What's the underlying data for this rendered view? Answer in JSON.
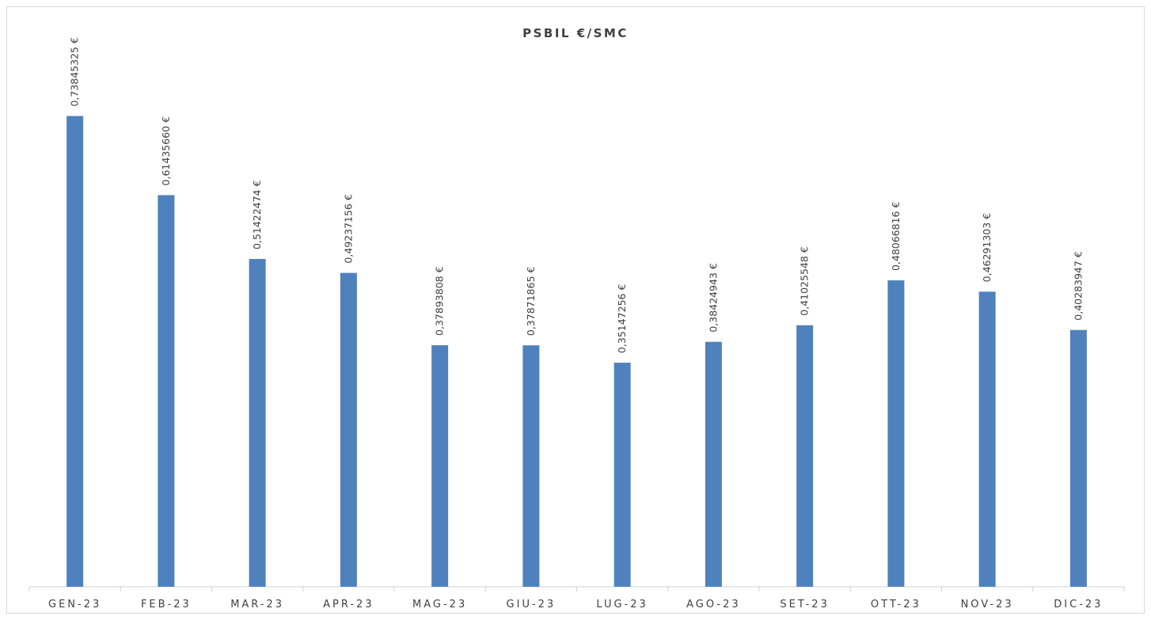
{
  "chart_data": {
    "type": "bar",
    "title": "PSBIL €/SMC",
    "xlabel": "",
    "ylabel": "",
    "categories": [
      "GEN-23",
      "FEB-23",
      "MAR-23",
      "APR-23",
      "MAG-23",
      "GIU-23",
      "LUG-23",
      "AGO-23",
      "SET-23",
      "OTT-23",
      "NOV-23",
      "DIC-23"
    ],
    "values": [
      0.73845325,
      0.6143566,
      0.51422474,
      0.49237156,
      0.37893808,
      0.37871865,
      0.35147256,
      0.38424943,
      0.41025548,
      0.48066816,
      0.46291303,
      0.40283947
    ],
    "value_labels": [
      "0,73845325 €",
      "0,61435660 €",
      "0,51422474 €",
      "0,49237156 €",
      "0,37893808 €",
      "0,37871865 €",
      "0,35147256 €",
      "0,38424943 €",
      "0,41025548 €",
      "0,48066816 €",
      "0,46291303 €",
      "0,40283947 €"
    ],
    "ylim": [
      0,
      0.8
    ],
    "grid": false,
    "legend": "none",
    "bar_color": "#4f81bd"
  }
}
